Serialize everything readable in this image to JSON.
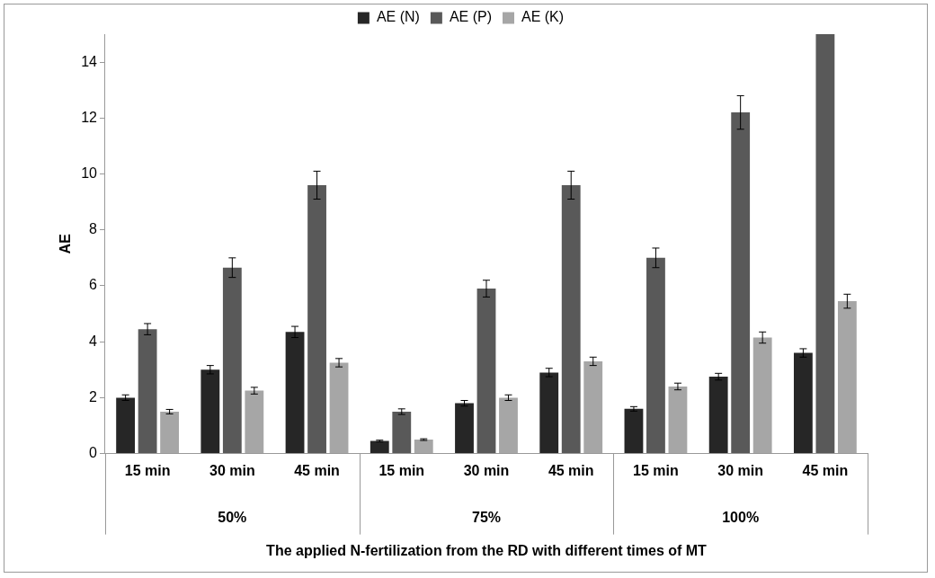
{
  "chart_data": {
    "type": "bar",
    "xlabel": "The applied N-fertilization from the RD with different times of MT",
    "ylabel": "AE",
    "categories": [
      "15 min",
      "30 min",
      "45 min",
      "15 min",
      "30 min",
      "45 min",
      "15 min",
      "30 min",
      "45 min"
    ],
    "annotations": [
      "50%",
      "75%",
      "100%"
    ],
    "series": [
      {
        "name": "AE (N)",
        "color": "#262626",
        "values": [
          2.0,
          3.0,
          4.35,
          0.45,
          1.8,
          2.9,
          1.6,
          2.75,
          3.6
        ],
        "errors": [
          0.1,
          0.15,
          0.2,
          0.03,
          0.1,
          0.15,
          0.08,
          0.12,
          0.15
        ]
      },
      {
        "name": "AE (P)",
        "color": "#595959",
        "values": [
          4.45,
          6.65,
          9.6,
          1.5,
          5.9,
          9.6,
          7.0,
          12.2,
          15
        ],
        "errors": [
          0.2,
          0.35,
          0.5,
          0.1,
          0.3,
          0.5,
          0.35,
          0.6,
          null
        ]
      },
      {
        "name": "AE (K)",
        "color": "#a6a6a6",
        "values": [
          1.5,
          2.25,
          3.25,
          0.5,
          2.0,
          3.3,
          2.4,
          4.15,
          5.45
        ],
        "errors": [
          0.08,
          0.12,
          0.15,
          0.03,
          0.1,
          0.15,
          0.12,
          0.2,
          0.25
        ]
      }
    ],
    "ylim": [
      0,
      15
    ],
    "yticks": [
      0,
      2,
      4,
      6,
      8,
      10,
      12,
      14
    ],
    "grid": false,
    "legend": "top"
  }
}
